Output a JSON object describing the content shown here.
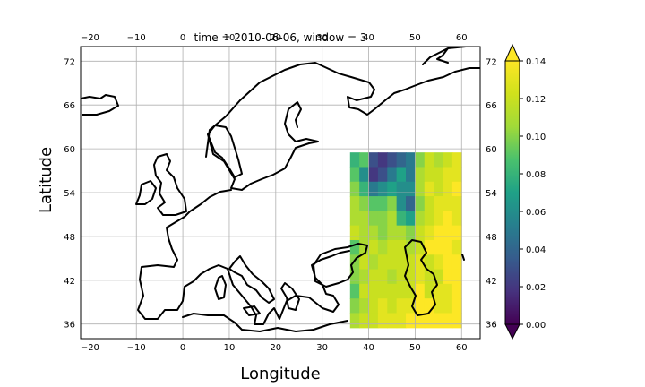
{
  "chart_data": {
    "type": "heatmap",
    "title": "time = 2010-06-06, window = 3",
    "xlabel": "Longitude",
    "ylabel": "Latitude",
    "xlim": [
      -22,
      64
    ],
    "ylim": [
      34,
      74
    ],
    "x_ticks": [
      -20,
      -10,
      0,
      10,
      20,
      30,
      40,
      50,
      60
    ],
    "y_ticks": [
      36,
      42,
      48,
      54,
      60,
      66,
      72
    ],
    "x_tick_labels": [
      "−20",
      "−10",
      "0",
      "10",
      "20",
      "30",
      "40",
      "50",
      "60"
    ],
    "y_tick_labels": [
      "36",
      "42",
      "48",
      "54",
      "60",
      "66",
      "72"
    ],
    "grid": true,
    "data_region": {
      "lon": [
        36,
        60
      ],
      "lat": [
        35.5,
        59.5
      ]
    },
    "colormap": "viridis",
    "colorbar": {
      "ticks": [
        0.0,
        0.02,
        0.04,
        0.06,
        0.08,
        0.1,
        0.12,
        0.14
      ],
      "tick_labels": [
        "0.00",
        "0.02",
        "0.04",
        "0.06",
        "0.08",
        "0.10",
        "0.12",
        "0.14"
      ],
      "range": [
        0.0,
        0.14
      ],
      "extend": "both"
    },
    "values": [
      [
        0.08,
        0.09,
        0.03,
        0.02,
        0.03,
        0.04,
        0.05,
        0.1,
        0.12,
        0.11,
        0.12,
        0.13
      ],
      [
        0.09,
        0.06,
        0.02,
        0.03,
        0.05,
        0.07,
        0.05,
        0.11,
        0.12,
        0.12,
        0.13,
        0.13
      ],
      [
        0.1,
        0.08,
        0.05,
        0.06,
        0.07,
        0.06,
        0.06,
        0.11,
        0.13,
        0.12,
        0.13,
        0.14
      ],
      [
        0.11,
        0.1,
        0.09,
        0.09,
        0.1,
        0.06,
        0.04,
        0.1,
        0.12,
        0.13,
        0.13,
        0.13
      ],
      [
        0.11,
        0.11,
        0.1,
        0.1,
        0.11,
        0.08,
        0.07,
        0.11,
        0.12,
        0.13,
        0.14,
        0.13
      ],
      [
        0.12,
        0.11,
        0.11,
        0.1,
        0.11,
        0.11,
        0.1,
        0.12,
        0.13,
        0.14,
        0.14,
        0.14
      ],
      [
        0.09,
        0.11,
        0.12,
        0.11,
        0.12,
        0.12,
        0.11,
        0.12,
        0.14,
        0.14,
        0.14,
        0.13
      ],
      [
        0.1,
        0.12,
        0.11,
        0.12,
        0.12,
        0.12,
        0.12,
        0.13,
        0.12,
        0.13,
        0.14,
        0.14
      ],
      [
        0.1,
        0.11,
        0.12,
        0.12,
        0.11,
        0.12,
        0.12,
        0.13,
        0.12,
        0.12,
        0.14,
        0.14
      ],
      [
        0.09,
        0.12,
        0.12,
        0.12,
        0.12,
        0.12,
        0.12,
        0.14,
        0.12,
        0.13,
        0.13,
        0.14
      ],
      [
        0.1,
        0.11,
        0.12,
        0.13,
        0.12,
        0.13,
        0.13,
        0.14,
        0.14,
        0.13,
        0.13,
        0.14
      ],
      [
        0.11,
        0.12,
        0.12,
        0.13,
        0.13,
        0.13,
        0.14,
        0.14,
        0.14,
        0.14,
        0.14,
        0.14
      ]
    ]
  }
}
